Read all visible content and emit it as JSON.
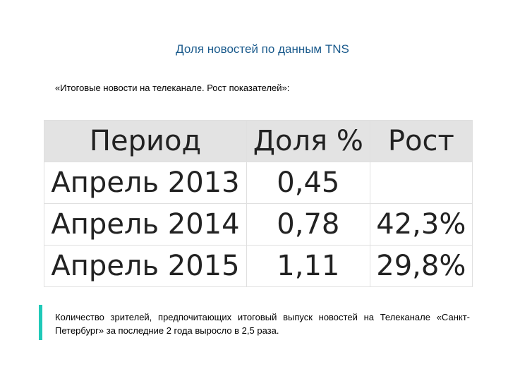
{
  "header": {
    "title": "Доля новостей по данным TNS",
    "subtitle": "«Итоговые новости на телеканале. Рост показателей»:"
  },
  "table": {
    "columns": [
      "Период",
      "Доля %",
      "Рост"
    ],
    "rows": [
      [
        "Апрель 2013",
        "0,45",
        ""
      ],
      [
        "Апрель 2014",
        "0,78",
        "42,3%"
      ],
      [
        "Апрель 2015",
        "1,11",
        "29,8%"
      ]
    ]
  },
  "note": "Количество зрителей, предпочитающих итоговый выпуск новостей на Телеканале «Санкт-Петербург» за последние 2 года выросло в 2,5 раза."
}
